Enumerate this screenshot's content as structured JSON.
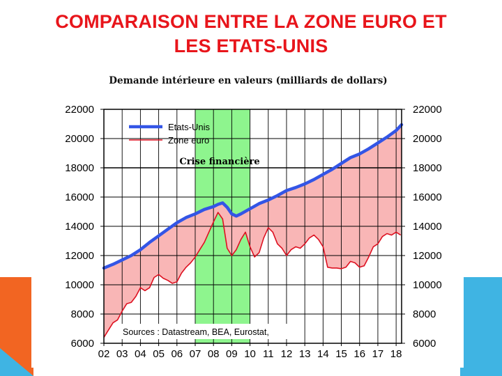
{
  "slide": {
    "title_line1": "COMPARAISON ENTRE LA ZONE EURO ET",
    "title_line2": "LES ETATS-UNIS",
    "colors": {
      "title": "#e8151b",
      "accent_orange": "#f26522",
      "accent_blue": "#3fb4e3"
    }
  },
  "chart_data": {
    "type": "line",
    "title": "Demande intérieure en valeurs (milliards de dollars)",
    "x_tick_labels": [
      "02",
      "03",
      "04",
      "05",
      "06",
      "07",
      "08",
      "09",
      "10",
      "11",
      "12",
      "13",
      "14",
      "15",
      "16",
      "17",
      "18"
    ],
    "x_range": [
      2002,
      2018.3
    ],
    "ylim": [
      6000,
      22000
    ],
    "y_ticks": [
      6000,
      8000,
      10000,
      12000,
      14000,
      16000,
      18000,
      20000,
      22000
    ],
    "y_tick_labels": [
      "6000",
      "8000",
      "10000",
      "12000",
      "14000",
      "16000",
      "18000",
      "20000",
      "22000"
    ],
    "dual_axis": true,
    "grid": true,
    "legend_position": "top-left",
    "annotations": {
      "crisis_label": "Crise financière",
      "crisis_range": [
        2007,
        2010
      ],
      "source": "Sources : Datastream, BEA, Eurostat,"
    },
    "series": [
      {
        "name": "Etats-Unis",
        "color": "#3355e6",
        "x": [
          2002.0,
          2002.5,
          2003.0,
          2003.5,
          2004.0,
          2004.5,
          2005.0,
          2005.5,
          2006.0,
          2006.5,
          2007.0,
          2007.5,
          2008.0,
          2008.25,
          2008.5,
          2008.75,
          2009.0,
          2009.25,
          2009.5,
          2010.0,
          2010.5,
          2011.0,
          2011.5,
          2012.0,
          2012.5,
          2013.0,
          2013.5,
          2014.0,
          2014.5,
          2015.0,
          2015.5,
          2016.0,
          2016.5,
          2017.0,
          2017.5,
          2018.0,
          2018.3
        ],
        "values": [
          11150,
          11400,
          11700,
          12000,
          12400,
          12900,
          13350,
          13800,
          14250,
          14600,
          14850,
          15150,
          15350,
          15500,
          15600,
          15300,
          14850,
          14700,
          14850,
          15200,
          15550,
          15800,
          16100,
          16450,
          16650,
          16900,
          17200,
          17550,
          17900,
          18300,
          18700,
          18950,
          19300,
          19700,
          20100,
          20550,
          20950
        ]
      },
      {
        "name": "Zone euro",
        "color": "#dd1020",
        "fill": "#f9b6b6",
        "x": [
          2002.0,
          2002.25,
          2002.5,
          2002.75,
          2003.0,
          2003.25,
          2003.5,
          2003.75,
          2004.0,
          2004.25,
          2004.5,
          2004.75,
          2005.0,
          2005.25,
          2005.5,
          2005.75,
          2006.0,
          2006.25,
          2006.5,
          2006.75,
          2007.0,
          2007.25,
          2007.5,
          2007.75,
          2008.0,
          2008.25,
          2008.5,
          2008.75,
          2009.0,
          2009.25,
          2009.5,
          2009.75,
          2010.0,
          2010.25,
          2010.5,
          2010.75,
          2011.0,
          2011.25,
          2011.5,
          2011.75,
          2012.0,
          2012.25,
          2012.5,
          2012.75,
          2013.0,
          2013.25,
          2013.5,
          2013.75,
          2014.0,
          2014.25,
          2014.5,
          2014.75,
          2015.0,
          2015.25,
          2015.5,
          2015.75,
          2016.0,
          2016.25,
          2016.5,
          2016.75,
          2017.0,
          2017.25,
          2017.5,
          2017.75,
          2018.0,
          2018.25
        ],
        "values": [
          6400,
          6900,
          7400,
          7600,
          8200,
          8700,
          8800,
          9200,
          9800,
          9600,
          9800,
          10500,
          10700,
          10450,
          10300,
          10100,
          10200,
          10800,
          11200,
          11500,
          11900,
          12400,
          12900,
          13600,
          14300,
          14950,
          14500,
          12500,
          12000,
          12400,
          13100,
          13600,
          12600,
          11900,
          12200,
          13200,
          13900,
          13600,
          12800,
          12500,
          12000,
          12400,
          12600,
          12500,
          12800,
          13200,
          13400,
          13100,
          12600,
          11200,
          11150,
          11150,
          11100,
          11200,
          11600,
          11500,
          11200,
          11300,
          11900,
          12600,
          12800,
          13300,
          13500,
          13400,
          13600,
          13400
        ]
      }
    ]
  }
}
